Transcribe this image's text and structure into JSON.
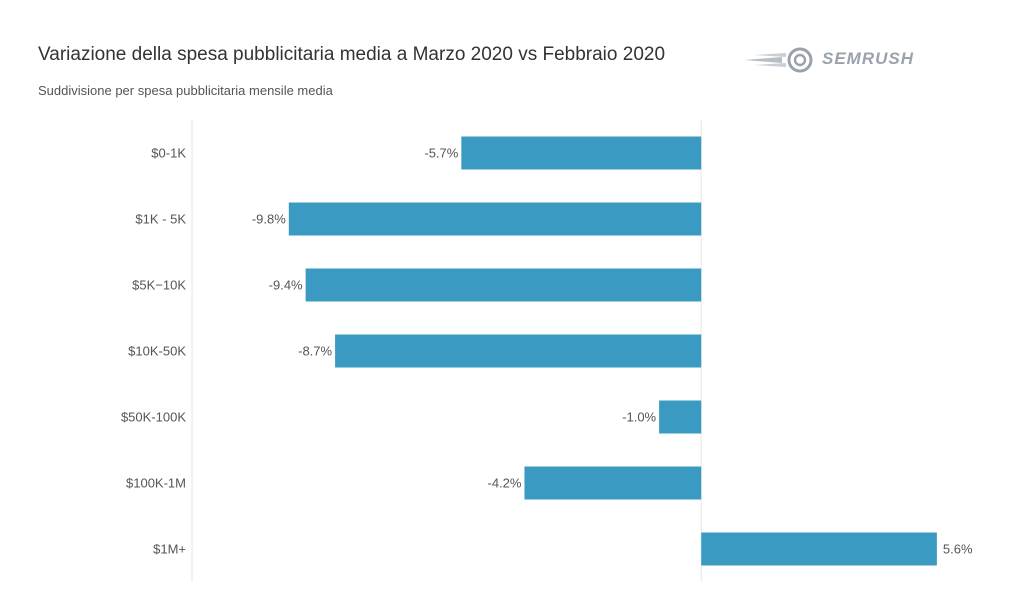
{
  "brand": {
    "name": "SEMRUSH"
  },
  "chart_data": {
    "type": "bar",
    "orientation": "horizontal",
    "title": "Variazione della spesa pubblicitaria media a Marzo 2020 vs Febbraio 2020",
    "subtitle": "Suddivisione per spesa pubblicitaria mensile media",
    "categories": [
      "$0-1K",
      "$1K - 5K",
      "$5K−10K",
      "$10K-50K",
      "$50K-100K",
      "$100K-1M",
      "$1M+"
    ],
    "values": [
      -5.7,
      -9.8,
      -9.4,
      -8.7,
      -1.0,
      -4.2,
      5.6
    ],
    "value_labels": [
      "-5.7%",
      "-9.8%",
      "-9.4%",
      "-8.7%",
      "-1.0%",
      "-4.2%",
      "5.6%"
    ],
    "xlim": [
      -12.1,
      7.1
    ],
    "bar_color": "#3a9ac2",
    "grid": false,
    "legend": "none"
  }
}
